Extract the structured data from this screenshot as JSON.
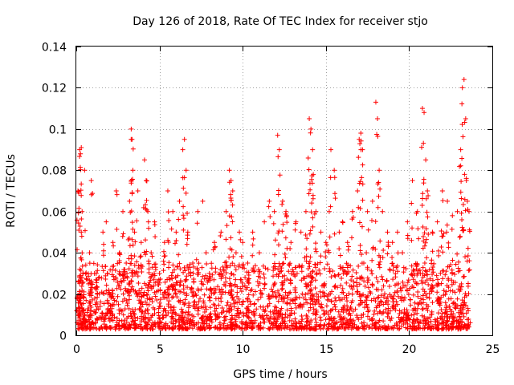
{
  "chart_data": {
    "type": "scatter",
    "title": "Day 126 of 2018, Rate Of TEC Index for receiver stjo",
    "xlabel": "GPS time / hours",
    "ylabel": "ROTI / TECUs",
    "xlim": [
      0,
      25
    ],
    "ylim": [
      0,
      0.14
    ],
    "x_ticks": [
      0,
      5,
      10,
      15,
      20,
      25
    ],
    "x_tick_labels": [
      "0",
      "5",
      "10",
      "15",
      "20",
      "25"
    ],
    "y_ticks": [
      0,
      0.02,
      0.04,
      0.06,
      0.08,
      0.1,
      0.12,
      0.14
    ],
    "y_tick_labels": [
      "0",
      "0.02",
      "0.04",
      "0.06",
      "0.08",
      "0.1",
      "0.12",
      "0.14"
    ],
    "grid": true,
    "marker": "+",
    "color": "#ff0000",
    "data_extent_hours": [
      0,
      23.6
    ],
    "series": [
      {
        "name": "ROTI",
        "x": [
          0.1,
          0.2,
          0.25,
          0.3,
          0.35,
          0.4,
          0.2,
          0.3,
          0.5,
          0.8,
          0.9,
          1.2,
          1.6,
          1.8,
          2.0,
          2.2,
          2.4,
          2.6,
          2.8,
          3.0,
          3.2,
          3.3,
          3.35,
          3.4,
          3.5,
          3.7,
          3.9,
          4.1,
          4.2,
          4.3,
          4.5,
          4.7,
          5.0,
          5.3,
          5.5,
          5.8,
          6.0,
          6.2,
          6.4,
          6.5,
          6.6,
          6.7,
          7.0,
          7.3,
          7.6,
          7.8,
          8.0,
          8.3,
          8.7,
          9.0,
          9.2,
          9.3,
          9.4,
          9.6,
          9.8,
          10.0,
          10.3,
          10.6,
          11.0,
          11.3,
          11.6,
          11.9,
          12.1,
          12.2,
          12.4,
          12.6,
          12.9,
          13.2,
          13.5,
          13.8,
          14.0,
          14.1,
          14.2,
          14.4,
          14.7,
          15.0,
          15.2,
          15.3,
          15.5,
          15.8,
          16.0,
          16.3,
          16.6,
          16.9,
          17.0,
          17.1,
          17.2,
          17.5,
          17.8,
          18.0,
          18.1,
          18.2,
          18.4,
          18.7,
          19.0,
          19.3,
          19.6,
          19.9,
          20.2,
          20.5,
          20.8,
          20.9,
          21.0,
          21.1,
          21.4,
          21.7,
          22.0,
          22.3,
          22.6,
          22.9,
          23.1,
          23.2,
          23.3,
          23.4,
          23.5,
          23.6
        ],
        "y": [
          0.07,
          0.09,
          0.088,
          0.091,
          0.06,
          0.03,
          0.02,
          0.05,
          0.08,
          0.04,
          0.075,
          0.03,
          0.05,
          0.055,
          0.02,
          0.045,
          0.07,
          0.04,
          0.06,
          0.035,
          0.065,
          0.1,
          0.095,
          0.08,
          0.05,
          0.07,
          0.045,
          0.085,
          0.075,
          0.06,
          0.04,
          0.055,
          0.03,
          0.045,
          0.07,
          0.06,
          0.05,
          0.065,
          0.09,
          0.095,
          0.08,
          0.05,
          0.035,
          0.06,
          0.065,
          0.04,
          0.03,
          0.045,
          0.05,
          0.06,
          0.08,
          0.075,
          0.07,
          0.04,
          0.05,
          0.045,
          0.035,
          0.05,
          0.04,
          0.055,
          0.065,
          0.06,
          0.097,
          0.09,
          0.065,
          0.06,
          0.045,
          0.055,
          0.05,
          0.06,
          0.105,
          0.1,
          0.09,
          0.06,
          0.05,
          0.045,
          0.06,
          0.09,
          0.08,
          0.05,
          0.055,
          0.045,
          0.06,
          0.07,
          0.095,
          0.098,
          0.09,
          0.06,
          0.065,
          0.113,
          0.105,
          0.08,
          0.06,
          0.05,
          0.045,
          0.05,
          0.04,
          0.055,
          0.075,
          0.06,
          0.11,
          0.108,
          0.085,
          0.07,
          0.05,
          0.055,
          0.07,
          0.065,
          0.058,
          0.06,
          0.09,
          0.12,
          0.124,
          0.105,
          0.065,
          0.06
        ]
      }
    ],
    "noise_floor": {
      "note": "dense cloud of points between the listed envelope values and 0.003",
      "min": 0.003,
      "typical_max": 0.035
    }
  }
}
